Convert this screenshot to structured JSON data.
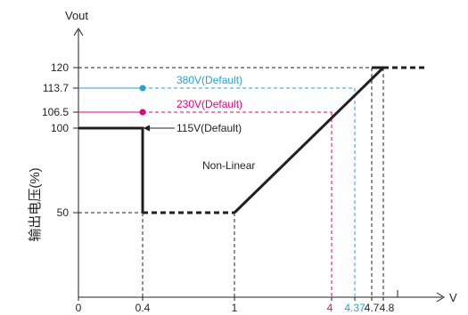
{
  "chart_data": {
    "type": "line",
    "title": "",
    "xlabel": "V",
    "ylabel": "Vout",
    "ylabel_side": "输出电压(%)",
    "x_ticks": [
      {
        "label": "0",
        "value": 0,
        "color": "#231f20"
      },
      {
        "label": "0.4",
        "value": 0.4,
        "color": "#231f20"
      },
      {
        "label": "1",
        "value": 1,
        "color": "#231f20"
      },
      {
        "label": "4",
        "value": 4,
        "color": "#e6007e"
      },
      {
        "label": "4.37",
        "value": 4.37,
        "color": "#1fa3d8"
      },
      {
        "label": "4.7",
        "value": 4.7,
        "color": "#231f20"
      },
      {
        "label": "4.8",
        "value": 4.8,
        "color": "#231f20"
      }
    ],
    "y_ticks": [
      {
        "label": "120",
        "value": 120
      },
      {
        "label": "113.7",
        "value": 113.7
      },
      {
        "label": "106.5",
        "value": 106.5
      },
      {
        "label": "100",
        "value": 100
      },
      {
        "label": "50",
        "value": 50
      }
    ],
    "series": [
      {
        "name": "115V(Default)",
        "color": "#231f20",
        "points": [
          [
            0,
            100
          ],
          [
            0.4,
            100
          ],
          [
            0.4,
            50
          ]
        ],
        "dashed_tail": [
          [
            0.4,
            50
          ],
          [
            1,
            50
          ]
        ]
      },
      {
        "name": "Non-Linear",
        "color": "#231f20",
        "points": [
          [
            1,
            50
          ],
          [
            4.8,
            120
          ]
        ],
        "dashed_tail": [
          [
            4.8,
            120
          ],
          [
            5.3,
            120
          ]
        ]
      }
    ],
    "annotations": [
      {
        "text": "380V(Default)",
        "color": "#1fa3d8",
        "x": 0.4,
        "y": 113.7,
        "x_end": 4.37
      },
      {
        "text": "230V(Default)",
        "color": "#e6007e",
        "x": 0.4,
        "y": 106.5,
        "x_end": 4
      },
      {
        "text": "115V(Default)",
        "color": "#231f20",
        "x": 0.4,
        "y": 100
      },
      {
        "text": "Non-Linear",
        "color": "#231f20",
        "x": 2.3,
        "y": 74
      }
    ]
  }
}
